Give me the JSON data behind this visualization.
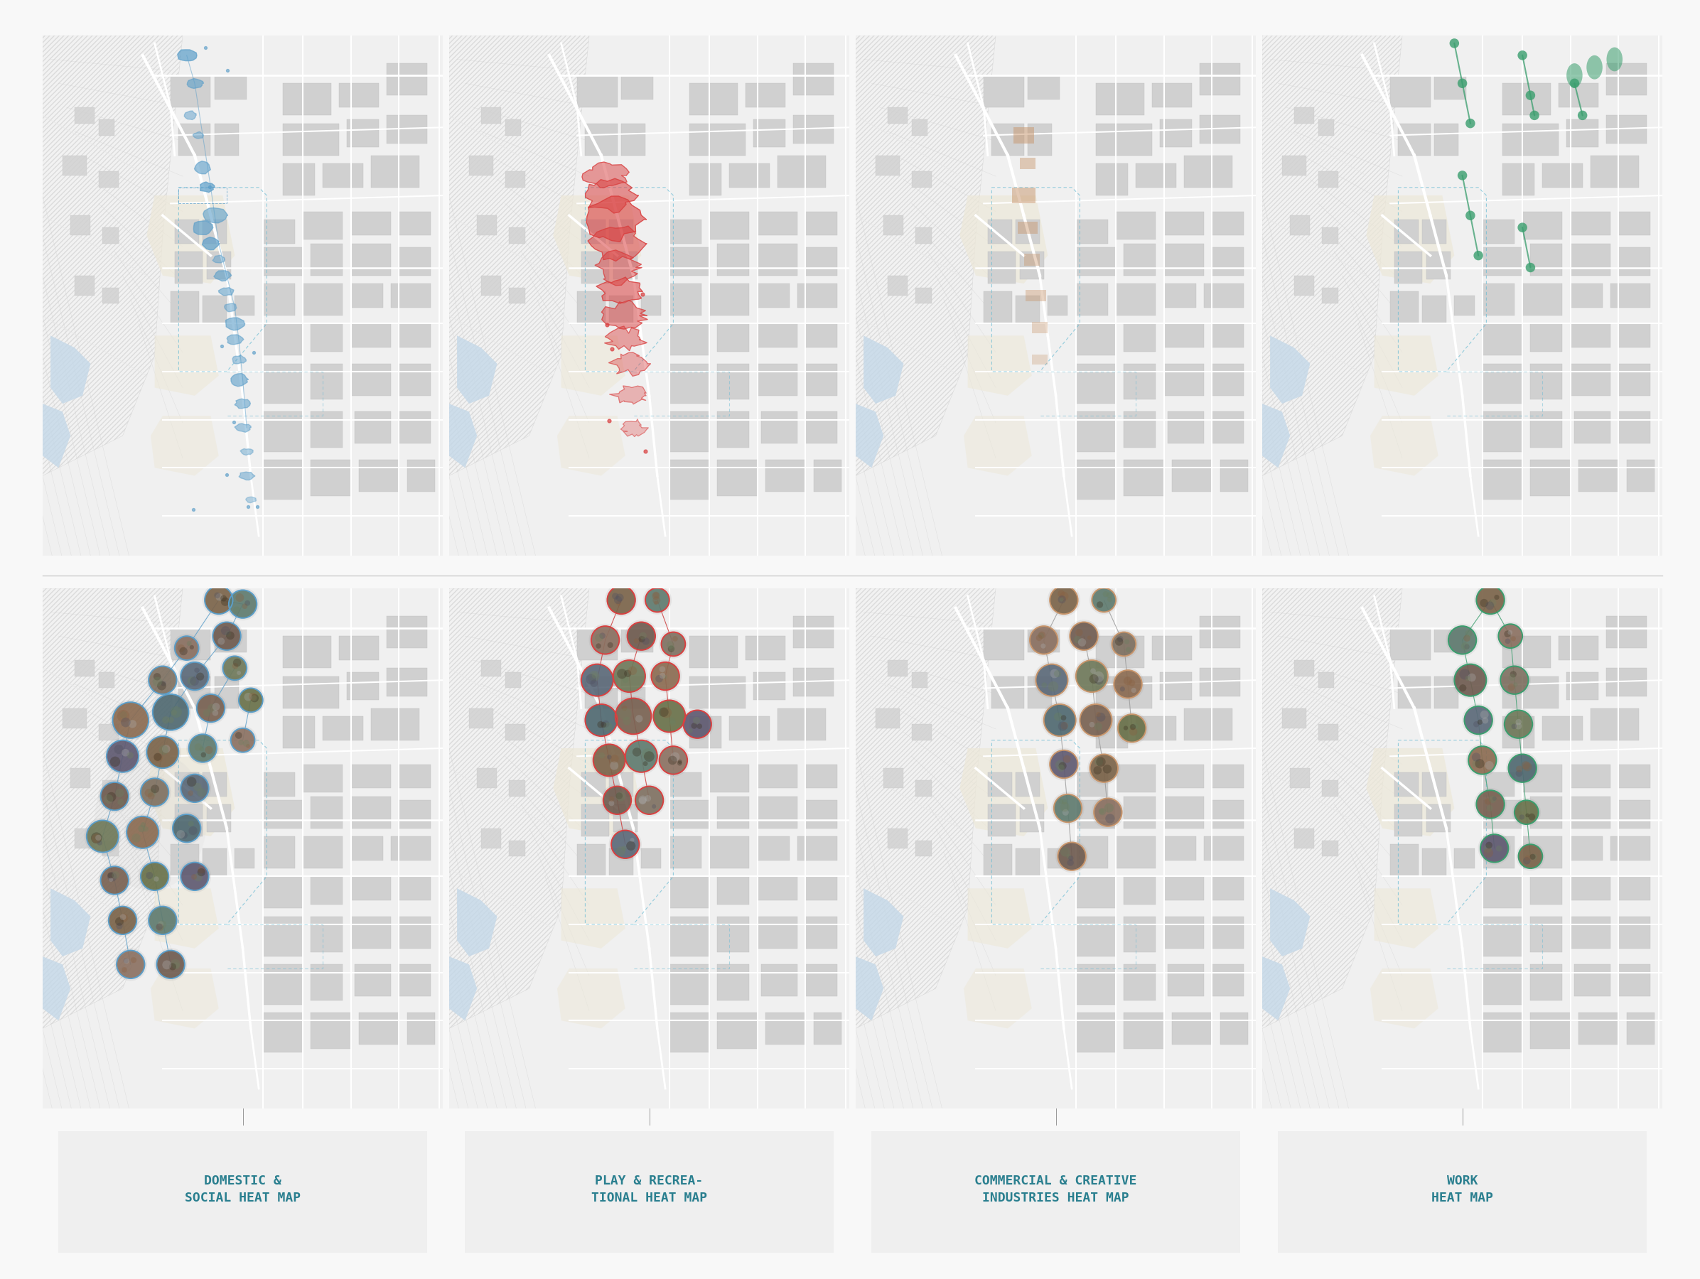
{
  "background_color": "#f8f8f8",
  "map_bg": "#f0f0f0",
  "hatch_area_color": "#f5f5f5",
  "hatch_line_color": "#c8c8c8",
  "block_colors": [
    "#d4d4d4",
    "#cccccc",
    "#c8c8c8",
    "#d8d8d8",
    "#e0ddd8"
  ],
  "road_color": "#ffffff",
  "water_color": "#c8dce8",
  "beige_area": "#f0ece0",
  "dashed_line_color": "#6bbcd4",
  "labels": [
    "DOMESTIC &\nSOCIAL HEAT MAP",
    "PLAY & RECREA-\nTIONAL HEAT MAP",
    "COMMERCIAL & CREATIVE\nINDUSTRIES HEAT MAP",
    "WORK\nHEAT MAP"
  ],
  "label_color": "#2a7f8f",
  "label_box_color": "#efefef",
  "label_fontsize": 13,
  "theme_colors": [
    "#5b9ec9",
    "#d94040",
    "#c8956b",
    "#3a9e6e"
  ],
  "connector_colors": [
    "#5b9ec9",
    "#cc3333",
    "#999999",
    "#3a9e6e"
  ],
  "divider_color": "#cccccc",
  "panel_border_color": "#dddddd"
}
